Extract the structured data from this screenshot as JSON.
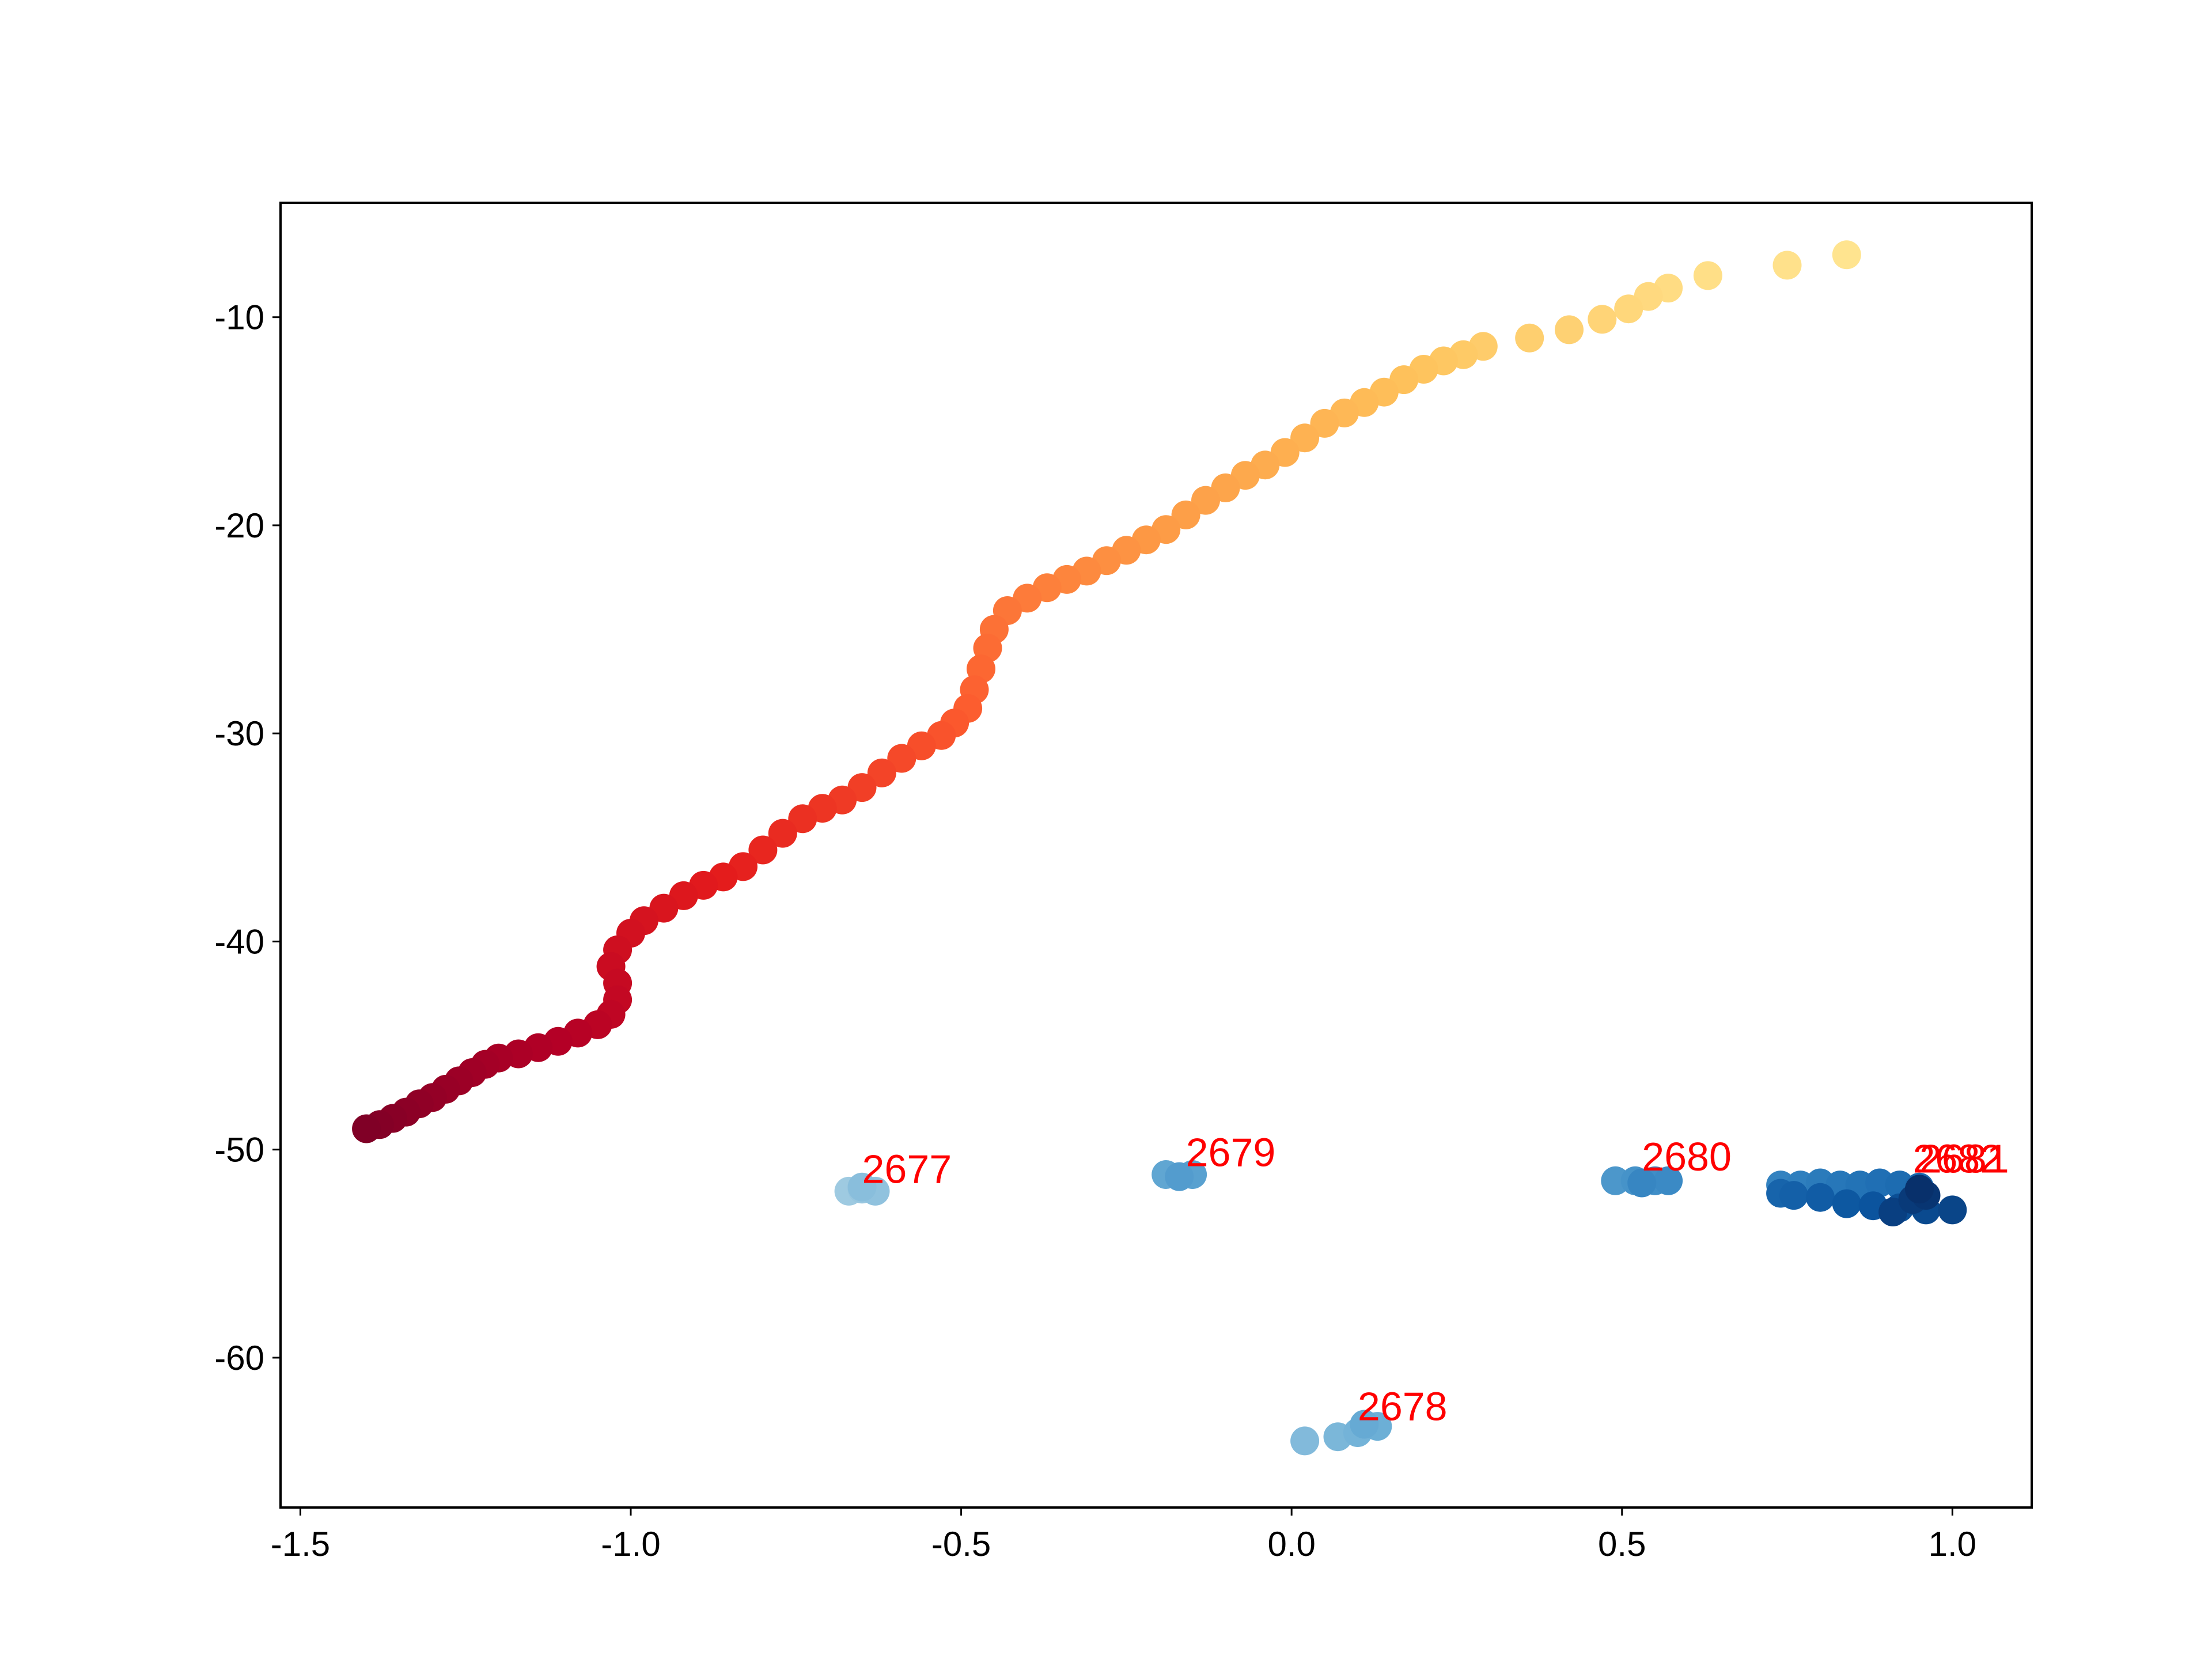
{
  "chart_data": {
    "type": "scatter",
    "title": "",
    "xlabel": "",
    "ylabel": "",
    "xlim": [
      -1.53,
      1.12
    ],
    "ylim": [
      -67.2,
      -4.5
    ],
    "xticks": [
      -1.5,
      -1.0,
      -0.5,
      0.0,
      0.5,
      1.0
    ],
    "xtick_labels": [
      "-1.5",
      "-1.0",
      "-0.5",
      "0.0",
      "0.5",
      "1.0"
    ],
    "yticks": [
      -60,
      -50,
      -40,
      -30,
      -20,
      -10
    ],
    "ytick_labels": [
      "-60",
      "-50",
      "-40",
      "-30",
      "-20",
      "-10"
    ],
    "grid": false,
    "series": [
      {
        "colormap": "YlOrRd",
        "points": [
          [
            -1.4,
            -49.0
          ],
          [
            -1.38,
            -48.8
          ],
          [
            -1.36,
            -48.5
          ],
          [
            -1.34,
            -48.2
          ],
          [
            -1.32,
            -47.8
          ],
          [
            -1.3,
            -47.5
          ],
          [
            -1.28,
            -47.1
          ],
          [
            -1.26,
            -46.7
          ],
          [
            -1.24,
            -46.3
          ],
          [
            -1.22,
            -45.9
          ],
          [
            -1.2,
            -45.6
          ],
          [
            -1.17,
            -45.4
          ],
          [
            -1.14,
            -45.1
          ],
          [
            -1.11,
            -44.8
          ],
          [
            -1.08,
            -44.4
          ],
          [
            -1.05,
            -44.0
          ],
          [
            -1.03,
            -43.5
          ],
          [
            -1.02,
            -42.8
          ],
          [
            -1.02,
            -42.0
          ],
          [
            -1.03,
            -41.2
          ],
          [
            -1.02,
            -40.4
          ],
          [
            -1.0,
            -39.6
          ],
          [
            -0.98,
            -39.0
          ],
          [
            -0.95,
            -38.4
          ],
          [
            -0.92,
            -37.8
          ],
          [
            -0.89,
            -37.3
          ],
          [
            -0.86,
            -36.9
          ],
          [
            -0.83,
            -36.4
          ],
          [
            -0.8,
            -35.6
          ],
          [
            -0.77,
            -34.8
          ],
          [
            -0.74,
            -34.1
          ],
          [
            -0.71,
            -33.6
          ],
          [
            -0.68,
            -33.2
          ],
          [
            -0.65,
            -32.6
          ],
          [
            -0.62,
            -31.9
          ],
          [
            -0.59,
            -31.2
          ],
          [
            -0.56,
            -30.6
          ],
          [
            -0.53,
            -30.1
          ],
          [
            -0.51,
            -29.5
          ],
          [
            -0.49,
            -28.8
          ],
          [
            -0.48,
            -27.9
          ],
          [
            -0.47,
            -26.9
          ],
          [
            -0.46,
            -25.9
          ],
          [
            -0.45,
            -25.0
          ],
          [
            -0.43,
            -24.1
          ],
          [
            -0.4,
            -23.5
          ],
          [
            -0.37,
            -23.0
          ],
          [
            -0.34,
            -22.6
          ],
          [
            -0.31,
            -22.2
          ],
          [
            -0.28,
            -21.7
          ],
          [
            -0.25,
            -21.2
          ],
          [
            -0.22,
            -20.7
          ],
          [
            -0.19,
            -20.2
          ],
          [
            -0.16,
            -19.5
          ],
          [
            -0.13,
            -18.8
          ],
          [
            -0.1,
            -18.2
          ],
          [
            -0.07,
            -17.6
          ],
          [
            -0.04,
            -17.1
          ],
          [
            -0.01,
            -16.5
          ],
          [
            0.02,
            -15.8
          ],
          [
            0.05,
            -15.1
          ],
          [
            0.08,
            -14.6
          ],
          [
            0.11,
            -14.1
          ],
          [
            0.14,
            -13.6
          ],
          [
            0.17,
            -13.0
          ],
          [
            0.2,
            -12.5
          ],
          [
            0.23,
            -12.1
          ],
          [
            0.26,
            -11.8
          ],
          [
            0.29,
            -11.4
          ],
          [
            0.36,
            -11.0
          ],
          [
            0.42,
            -10.6
          ],
          [
            0.47,
            -10.1
          ],
          [
            0.51,
            -9.6
          ],
          [
            0.54,
            -9.0
          ],
          [
            0.57,
            -8.6
          ],
          [
            0.63,
            -8.0
          ],
          [
            0.75,
            -7.5
          ],
          [
            0.84,
            -7.0
          ]
        ]
      },
      {
        "colormap": "Blues",
        "points": [
          [
            -0.67,
            -52.0
          ],
          [
            -0.65,
            -51.9
          ],
          [
            -0.63,
            -52.0
          ],
          [
            -0.65,
            -51.8
          ],
          [
            0.02,
            -64.0
          ],
          [
            0.07,
            -63.8
          ],
          [
            0.1,
            -63.6
          ],
          [
            0.13,
            -63.3
          ],
          [
            0.11,
            -63.2
          ],
          [
            -0.19,
            -51.2
          ],
          [
            -0.15,
            -51.2
          ],
          [
            -0.17,
            -51.3
          ],
          [
            0.49,
            -51.5
          ],
          [
            0.52,
            -51.5
          ],
          [
            0.55,
            -51.5
          ],
          [
            0.57,
            -51.5
          ],
          [
            0.53,
            -51.6
          ],
          [
            0.74,
            -51.7
          ],
          [
            0.77,
            -51.7
          ],
          [
            0.8,
            -51.6
          ],
          [
            0.83,
            -51.7
          ],
          [
            0.86,
            -51.7
          ],
          [
            0.89,
            -51.6
          ],
          [
            0.92,
            -51.7
          ],
          [
            0.95,
            -51.8
          ],
          [
            0.74,
            -52.1
          ],
          [
            0.76,
            -52.2
          ],
          [
            0.8,
            -52.3
          ],
          [
            0.84,
            -52.6
          ],
          [
            0.88,
            -52.7
          ],
          [
            0.92,
            -52.8
          ],
          [
            0.96,
            -52.9
          ],
          [
            1.0,
            -52.9
          ],
          [
            0.91,
            -53.0
          ],
          [
            0.94,
            -52.4
          ],
          [
            0.96,
            -52.2
          ],
          [
            0.95,
            -51.9
          ]
        ]
      }
    ],
    "annotations": [
      {
        "label": "2677",
        "x": -0.65,
        "y": -51.6
      },
      {
        "label": "2678",
        "x": 0.1,
        "y": -63.0
      },
      {
        "label": "2679",
        "x": -0.16,
        "y": -50.8
      },
      {
        "label": "2680",
        "x": 0.53,
        "y": -51.0
      },
      {
        "label": "2681",
        "x": 0.95,
        "y": -51.1
      },
      {
        "label": "2682",
        "x": 0.94,
        "y": -51.1
      }
    ],
    "annotation_color": "#ff0000"
  }
}
